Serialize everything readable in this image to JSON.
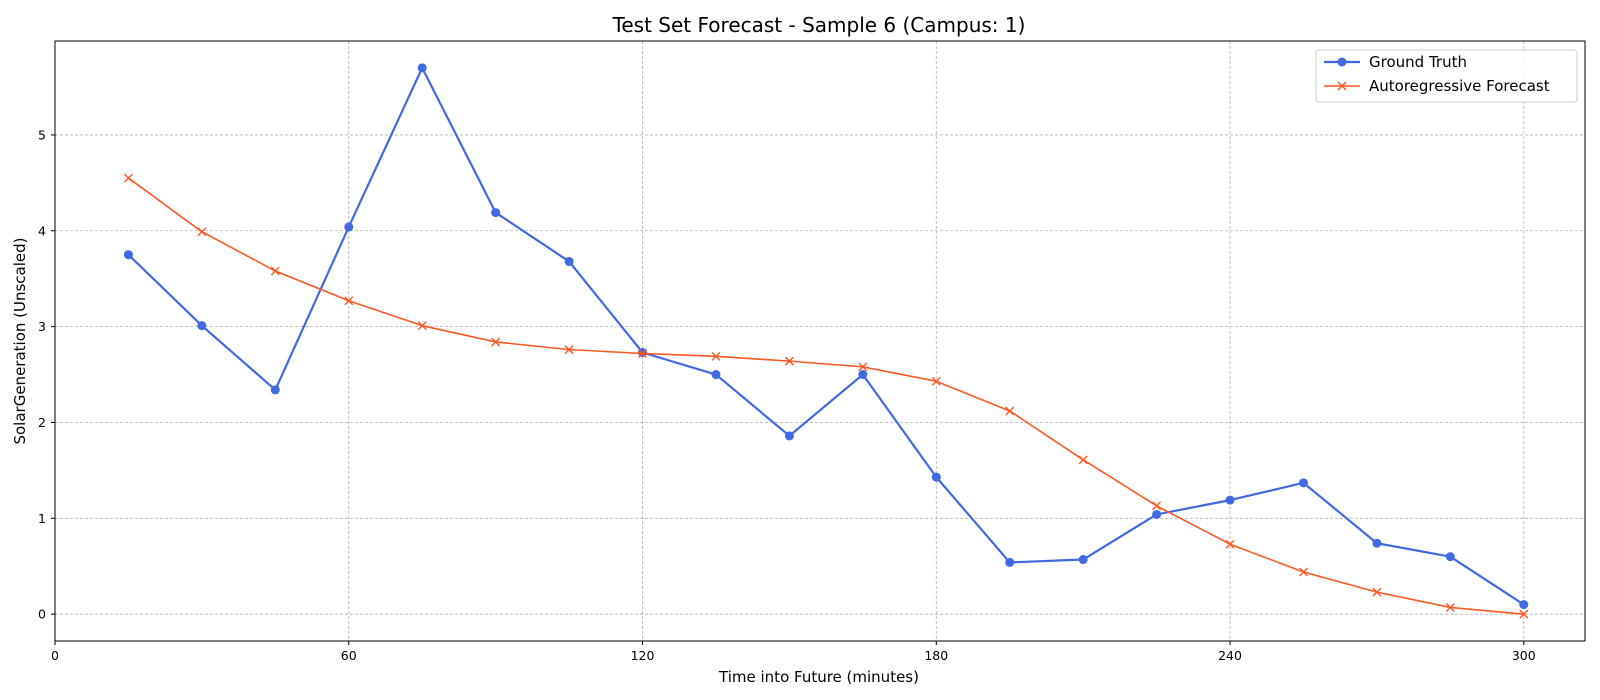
{
  "chart_data": {
    "type": "line",
    "title": "Test Set Forecast - Sample 6 (Campus: 1)",
    "xlabel": "Time into Future (minutes)",
    "ylabel": "SolarGeneration (Unscaled)",
    "xlim": [
      0,
      312.5
    ],
    "ylim": [
      -0.28,
      5.98
    ],
    "xticks": [
      0,
      60,
      120,
      180,
      240,
      300
    ],
    "yticks": [
      0,
      1,
      2,
      3,
      4,
      5
    ],
    "grid": true,
    "legend_position": "top-right",
    "x": [
      15,
      30,
      45,
      60,
      75,
      90,
      105,
      120,
      135,
      150,
      165,
      180,
      195,
      210,
      225,
      240,
      255,
      270,
      285,
      300
    ],
    "series": [
      {
        "name": "Ground Truth",
        "color": "#4169e1",
        "marker": "circle",
        "values": [
          3.75,
          3.01,
          2.34,
          4.04,
          5.7,
          4.19,
          3.68,
          2.73,
          2.5,
          1.86,
          2.5,
          1.43,
          0.54,
          0.57,
          1.04,
          1.19,
          1.37,
          0.74,
          0.6,
          0.1
        ]
      },
      {
        "name": "Autoregressive Forecast",
        "color": "#ff5722",
        "marker": "x",
        "values": [
          4.55,
          3.99,
          3.58,
          3.27,
          3.01,
          2.84,
          2.76,
          2.72,
          2.69,
          2.64,
          2.58,
          2.43,
          2.12,
          1.61,
          1.13,
          0.73,
          0.44,
          0.23,
          0.07,
          0.0
        ]
      }
    ]
  }
}
